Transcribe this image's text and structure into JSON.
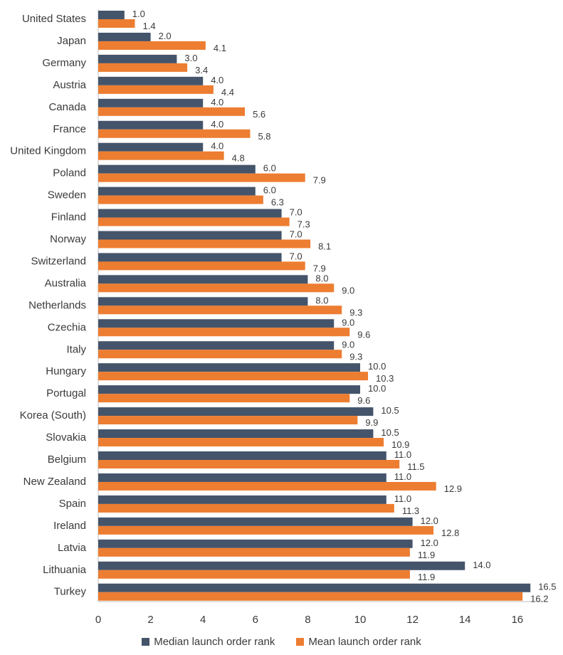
{
  "chart_data": {
    "type": "bar",
    "orientation": "horizontal",
    "categories": [
      "United States",
      "Japan",
      "Germany",
      "Austria",
      "Canada",
      "France",
      "United Kingdom",
      "Poland",
      "Sweden",
      "Finland",
      "Norway",
      "Switzerland",
      "Australia",
      "Netherlands",
      "Czechia",
      "Italy",
      "Hungary",
      "Portugal",
      "Korea (South)",
      "Slovakia",
      "Belgium",
      "New Zealand",
      "Spain",
      "Ireland",
      "Latvia",
      "Lithuania",
      "Turkey"
    ],
    "series": [
      {
        "name": "Median launch order rank",
        "color": "#44546a",
        "values": [
          1.0,
          2.0,
          3.0,
          4.0,
          4.0,
          4.0,
          4.0,
          6.0,
          6.0,
          7.0,
          7.0,
          7.0,
          8.0,
          8.0,
          9.0,
          9.0,
          10.0,
          10.0,
          10.5,
          10.5,
          11.0,
          11.0,
          11.0,
          12.0,
          12.0,
          14.0,
          16.5
        ],
        "labels": [
          "1.0",
          "2.0",
          "3.0",
          "4.0",
          "4.0",
          "4.0",
          "4.0",
          "6.0",
          "6.0",
          "7.0",
          "7.0",
          "7.0",
          "8.0",
          "8.0",
          "9.0",
          "9.0",
          "10.0",
          "10.0",
          "10.5",
          "10.5",
          "11.0",
          "11.0",
          "11.0",
          "12.0",
          "12.0",
          "14.0",
          "16.5"
        ]
      },
      {
        "name": "Mean launch order rank",
        "color": "#ed7d31",
        "values": [
          1.4,
          4.1,
          3.4,
          4.4,
          5.6,
          5.8,
          4.8,
          7.9,
          6.3,
          7.3,
          8.1,
          7.9,
          9.0,
          9.3,
          9.6,
          9.3,
          10.3,
          9.6,
          9.9,
          10.9,
          11.5,
          12.9,
          11.3,
          12.8,
          11.9,
          11.9,
          16.2
        ],
        "labels": [
          "1.4",
          "4.1",
          "3.4",
          "4.4",
          "5.6",
          "5.8",
          "4.8",
          "7.9",
          "6.3",
          "7.3",
          "8.1",
          "7.9",
          "9.0",
          "9.3",
          "9.6",
          "9.3",
          "10.3",
          "9.6",
          "9.9",
          "10.9",
          "11.5",
          "12.9",
          "11.3",
          "12.8",
          "11.9",
          "11.9",
          "16.2"
        ]
      }
    ],
    "xlim": [
      0,
      17
    ],
    "ticks": [
      0,
      2,
      4,
      6,
      8,
      10,
      12,
      14,
      16
    ],
    "tick_labels": [
      "0",
      "2",
      "4",
      "6",
      "8",
      "10",
      "12",
      "14",
      "16"
    ],
    "legend": "bottom",
    "grid": false,
    "title": "",
    "xlabel": "",
    "ylabel": ""
  }
}
